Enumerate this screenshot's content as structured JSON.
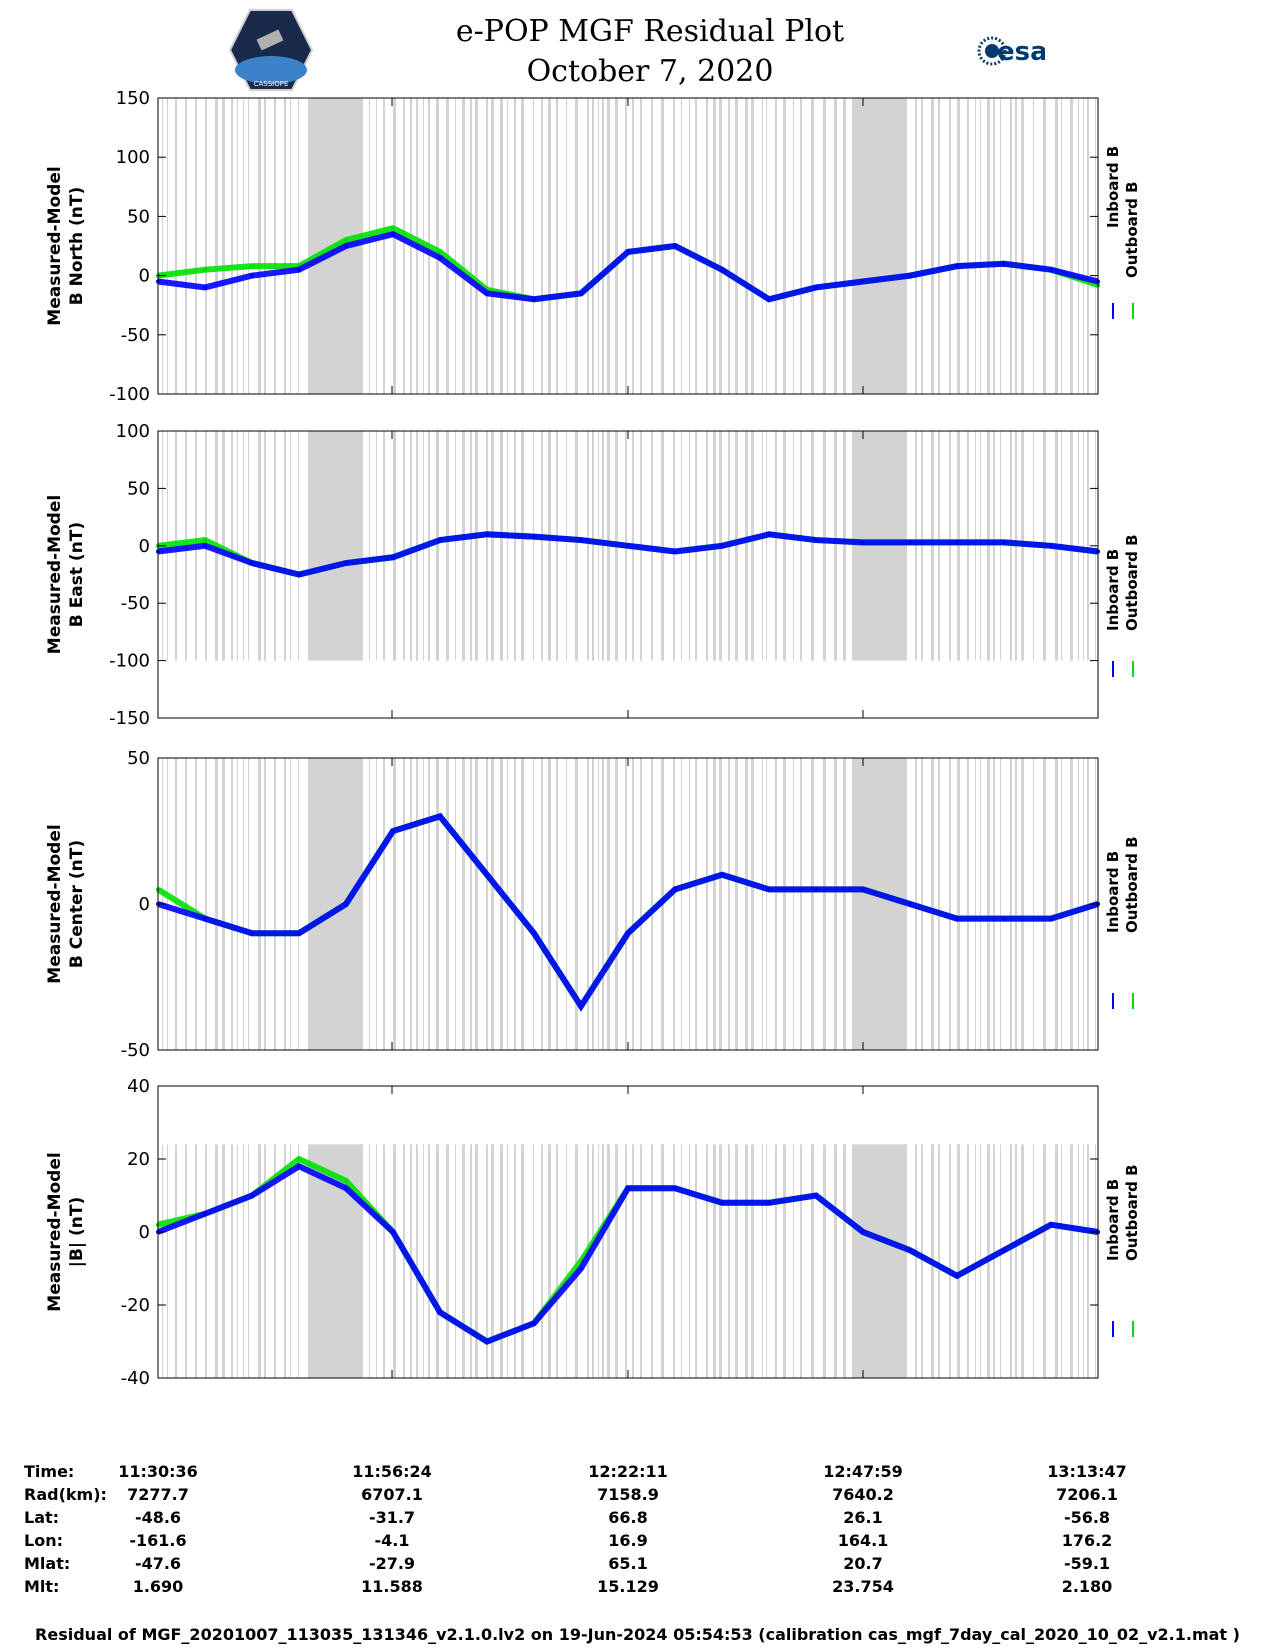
{
  "header": {
    "title_line1": "e-POP MGF Residual Plot",
    "title_line2": "October 7, 2020",
    "left_logo_text": "CASSIOPE",
    "right_logo_text": "esa"
  },
  "colors": {
    "inboard": "#0000ff",
    "outboard": "#00e000",
    "shading": "#d3d3d3"
  },
  "chart_data": [
    {
      "type": "line",
      "ylabel_line1": "Measured-Model",
      "ylabel_line2": "B North (nT)",
      "ylim": [
        -100,
        150
      ],
      "yticks": [
        -100,
        -50,
        0,
        50,
        100,
        150
      ],
      "shade_ylim": [
        -100,
        150
      ],
      "series": [
        {
          "name": "Inboard B",
          "color": "#0000ff",
          "x": [
            0,
            5,
            10,
            15,
            20,
            25,
            30,
            35,
            40,
            45,
            50,
            55,
            60,
            65,
            70,
            75,
            80,
            85,
            90,
            95,
            100
          ],
          "y": [
            -5,
            -10,
            0,
            5,
            25,
            35,
            15,
            -15,
            -20,
            -15,
            20,
            25,
            5,
            -20,
            -10,
            -5,
            0,
            8,
            10,
            5,
            -5
          ]
        },
        {
          "name": "Outboard B",
          "color": "#00e000",
          "x": [
            0,
            5,
            10,
            15,
            20,
            25,
            30,
            35,
            40,
            45,
            50,
            55,
            60,
            65,
            70,
            75,
            80,
            85,
            90,
            95,
            100
          ],
          "y": [
            0,
            5,
            8,
            8,
            30,
            40,
            20,
            -12,
            -20,
            -15,
            20,
            25,
            5,
            -20,
            -10,
            -5,
            0,
            8,
            10,
            5,
            -8
          ]
        }
      ],
      "legend": [
        "Inboard B",
        "Outboard B"
      ]
    },
    {
      "type": "line",
      "ylabel_line1": "Measured-Model",
      "ylabel_line2": "B East (nT)",
      "ylim": [
        -150,
        100
      ],
      "yticks": [
        -150,
        -100,
        -50,
        0,
        50,
        100
      ],
      "shade_ylim": [
        -100,
        100
      ],
      "series": [
        {
          "name": "Inboard B",
          "color": "#0000ff",
          "x": [
            0,
            5,
            10,
            15,
            20,
            25,
            30,
            35,
            40,
            45,
            50,
            55,
            60,
            65,
            70,
            75,
            80,
            85,
            90,
            95,
            100
          ],
          "y": [
            -5,
            0,
            -15,
            -25,
            -15,
            -10,
            5,
            10,
            8,
            5,
            0,
            -5,
            0,
            10,
            5,
            3,
            3,
            3,
            3,
            0,
            -5
          ]
        },
        {
          "name": "Outboard B",
          "color": "#00e000",
          "x": [
            0,
            5,
            10,
            15,
            20,
            25,
            30,
            35,
            40,
            45,
            50,
            55,
            60,
            65,
            70,
            75,
            80,
            85,
            90,
            95,
            100
          ],
          "y": [
            0,
            5,
            -15,
            -25,
            -15,
            -10,
            5,
            10,
            8,
            5,
            0,
            -5,
            0,
            10,
            5,
            3,
            3,
            3,
            3,
            0,
            -5
          ]
        }
      ],
      "legend": [
        "Inboard B",
        "Outboard B"
      ]
    },
    {
      "type": "line",
      "ylabel_line1": "Measured-Model",
      "ylabel_line2": "B Center (nT)",
      "ylim": [
        -50,
        50
      ],
      "yticks": [
        -50,
        0,
        50
      ],
      "shade_ylim": [
        -50,
        50
      ],
      "series": [
        {
          "name": "Inboard B",
          "color": "#0000ff",
          "x": [
            0,
            5,
            10,
            15,
            20,
            25,
            30,
            35,
            40,
            45,
            50,
            55,
            60,
            65,
            70,
            75,
            80,
            85,
            90,
            95,
            100
          ],
          "y": [
            0,
            -5,
            -10,
            -10,
            0,
            25,
            30,
            10,
            -10,
            -35,
            -10,
            5,
            10,
            5,
            5,
            5,
            0,
            -5,
            -5,
            -5,
            0
          ]
        },
        {
          "name": "Outboard B",
          "color": "#00e000",
          "x": [
            0,
            5,
            10,
            15,
            20,
            25,
            30,
            35,
            40,
            45,
            50,
            55,
            60,
            65,
            70,
            75,
            80,
            85,
            90,
            95,
            100
          ],
          "y": [
            5,
            -5,
            -10,
            -10,
            0,
            25,
            30,
            10,
            -10,
            -35,
            -10,
            5,
            10,
            5,
            5,
            5,
            0,
            -5,
            -5,
            -5,
            0
          ]
        }
      ],
      "legend": [
        "Inboard B",
        "Outboard B"
      ]
    },
    {
      "type": "line",
      "ylabel_line1": "Measured-Model",
      "ylabel_line2": "|B| (nT)",
      "ylim": [
        -40,
        40
      ],
      "yticks": [
        -40,
        -20,
        0,
        20,
        40
      ],
      "shade_ylim": [
        -40,
        24
      ],
      "series": [
        {
          "name": "Inboard B",
          "color": "#0000ff",
          "x": [
            0,
            5,
            10,
            15,
            20,
            25,
            30,
            35,
            40,
            45,
            50,
            55,
            60,
            65,
            70,
            75,
            80,
            85,
            90,
            95,
            100
          ],
          "y": [
            0,
            5,
            10,
            18,
            12,
            0,
            -22,
            -30,
            -25,
            -10,
            12,
            12,
            8,
            8,
            10,
            0,
            -5,
            -12,
            -5,
            2,
            0
          ]
        },
        {
          "name": "Outboard B",
          "color": "#00e000",
          "x": [
            0,
            5,
            10,
            15,
            20,
            25,
            30,
            35,
            40,
            45,
            50,
            55,
            60,
            65,
            70,
            75,
            80,
            85,
            90,
            95,
            100
          ],
          "y": [
            2,
            5,
            10,
            20,
            14,
            0,
            -22,
            -30,
            -25,
            -8,
            12,
            12,
            8,
            8,
            10,
            0,
            -5,
            -12,
            -5,
            2,
            0
          ]
        }
      ],
      "legend": [
        "Inboard B",
        "Outboard B"
      ]
    }
  ],
  "footer": {
    "rows": [
      {
        "label": "Time:",
        "values": [
          "11:30:36",
          "11:56:24",
          "12:22:11",
          "12:47:59",
          "13:13:47"
        ]
      },
      {
        "label": "Rad(km):",
        "values": [
          "7277.7",
          "6707.1",
          "7158.9",
          "7640.2",
          "7206.1"
        ]
      },
      {
        "label": "Lat:",
        "values": [
          "-48.6",
          "-31.7",
          "66.8",
          "26.1",
          "-56.8"
        ]
      },
      {
        "label": "Lon:",
        "values": [
          "-161.6",
          "-4.1",
          "16.9",
          "164.1",
          "176.2"
        ]
      },
      {
        "label": "Mlat:",
        "values": [
          "-47.6",
          "-27.9",
          "65.1",
          "20.7",
          "-59.1"
        ]
      },
      {
        "label": "Mlt:",
        "values": [
          "1.690",
          "11.588",
          "15.129",
          "23.754",
          "2.180"
        ]
      }
    ],
    "caption": "Residual of MGF_20201007_113035_131346_v2.1.0.lv2 on 19-Jun-2024 05:54:53 (calibration cas_mgf_7day_cal_2020_10_02_v2.1.mat )"
  }
}
